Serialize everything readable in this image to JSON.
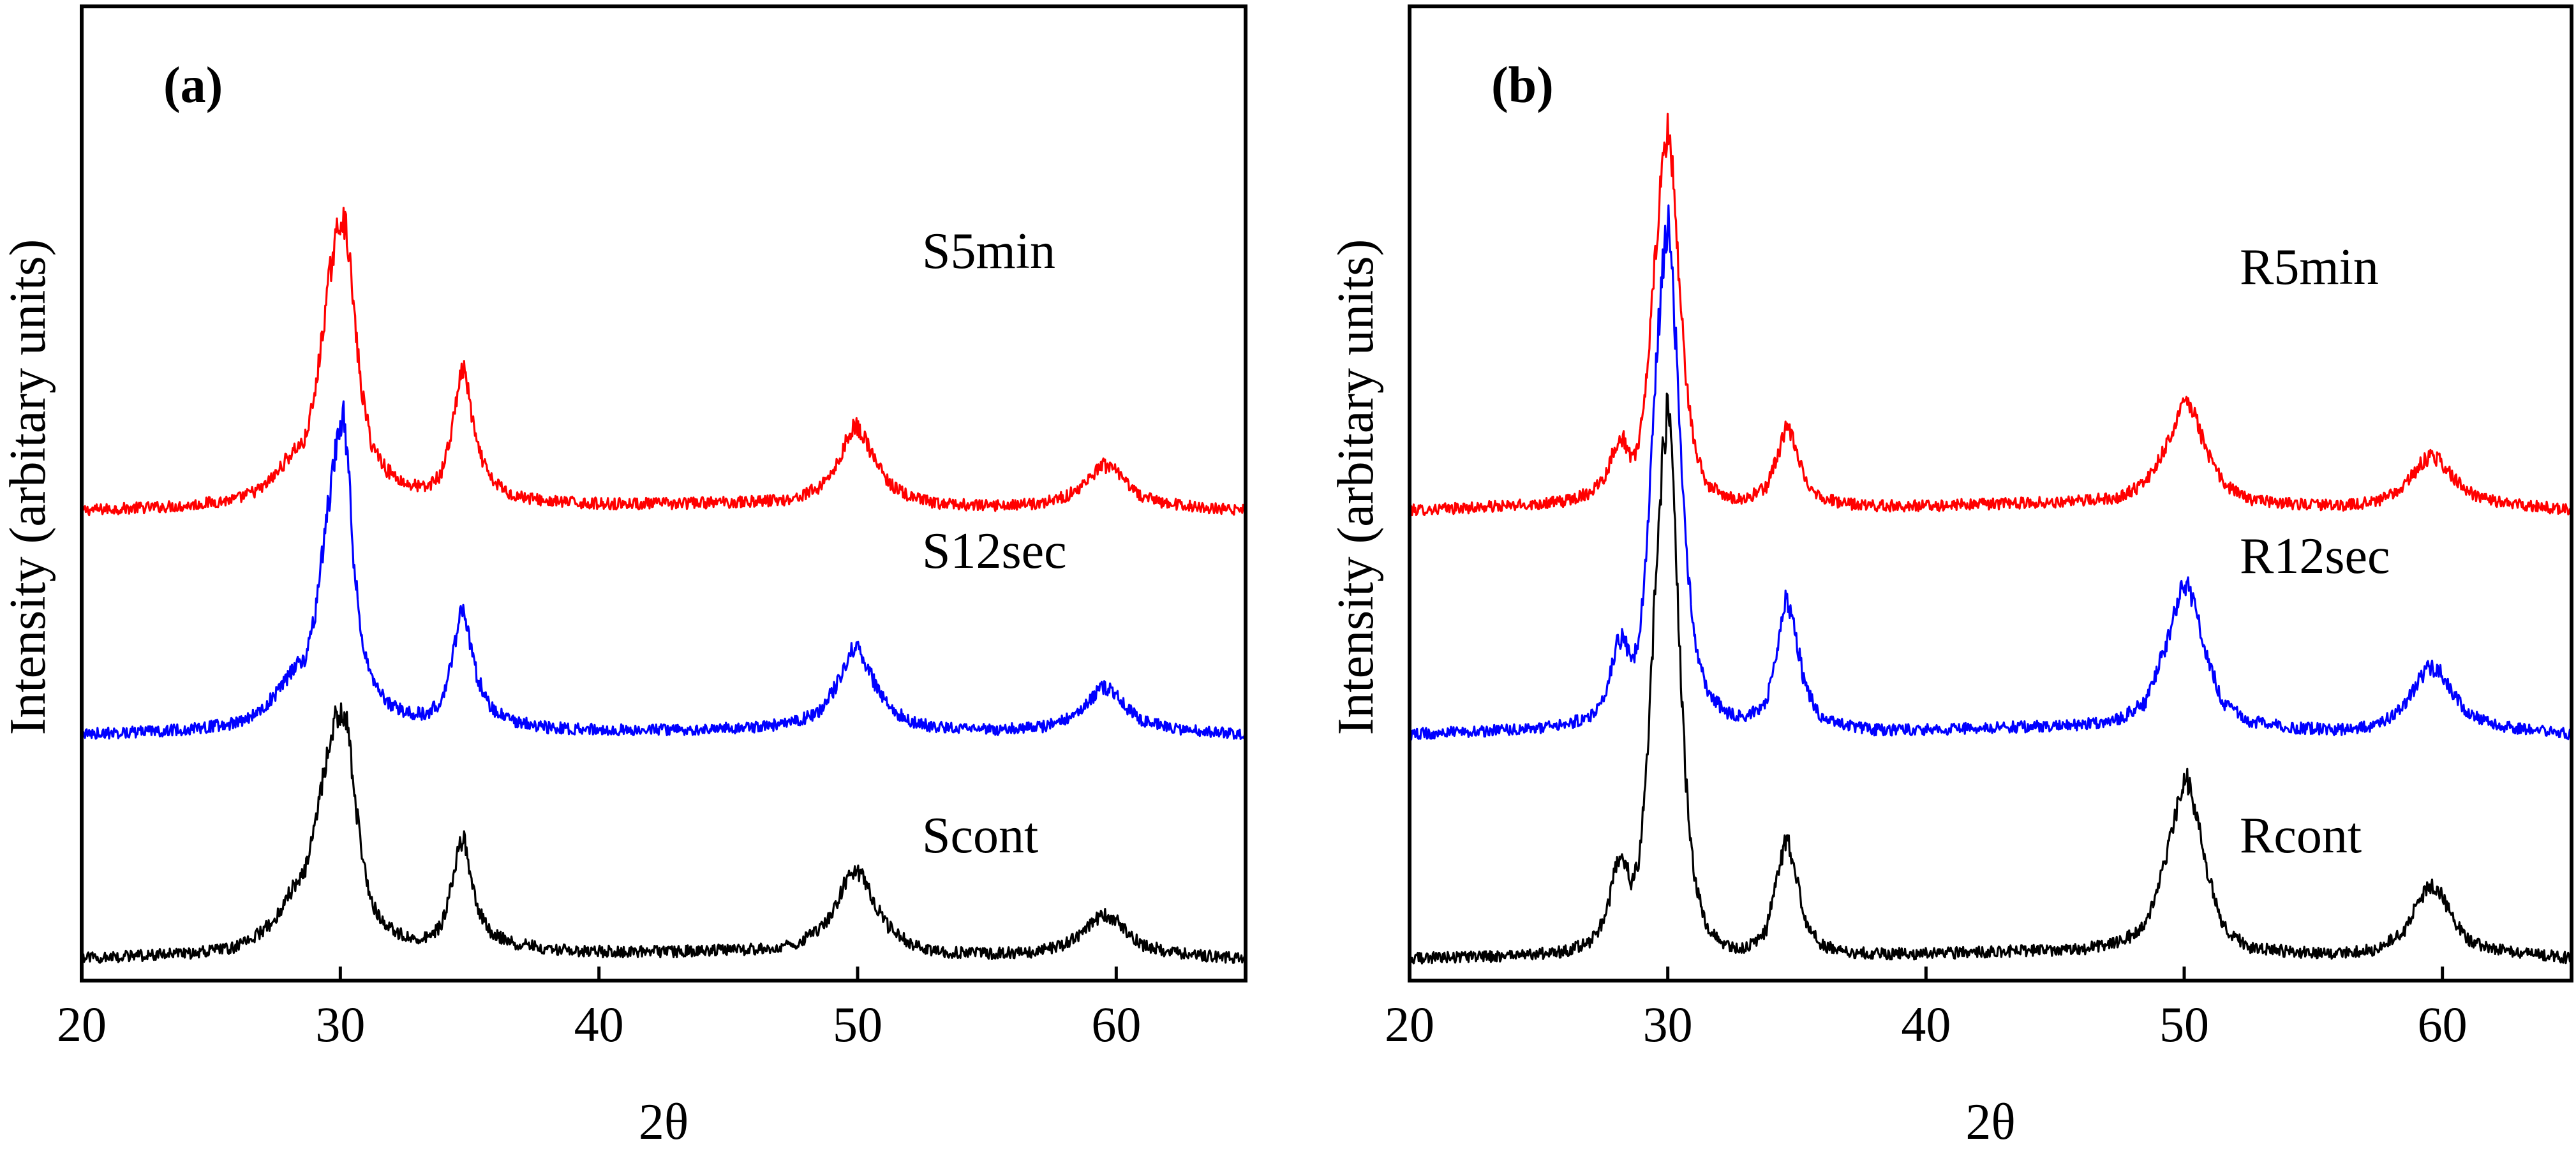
{
  "chart_data": [
    {
      "type": "line",
      "panel_label": "(a)",
      "xlabel": "2θ",
      "ylabel": "Intensity (arbitary units)",
      "xlim": [
        20,
        65
      ],
      "x_ticks": [
        "20",
        "30",
        "40",
        "50",
        "60"
      ],
      "y_ticks": [],
      "grid": false,
      "series": [
        {
          "name": "S5min",
          "color": "#ff0000",
          "x": [
            20,
            24,
            26,
            27,
            27.5,
            28,
            28.3,
            28.6,
            29,
            29.3,
            29.6,
            29.9,
            30.1,
            30.3,
            30.5,
            30.8,
            31.2,
            31.8,
            32.5,
            33.3,
            33.9,
            34.3,
            34.6,
            34.8,
            35.0,
            35.3,
            35.8,
            36.6,
            38,
            40,
            43,
            46,
            47.5,
            48.5,
            49.2,
            49.6,
            49.9,
            50.2,
            50.6,
            51.2,
            52,
            53,
            55,
            57,
            58,
            58.6,
            59.1,
            59.5,
            59.9,
            60.4,
            61,
            62,
            63.5,
            65
          ],
          "y": [
            1.0,
            1.02,
            1.05,
            1.1,
            1.16,
            1.24,
            1.28,
            1.3,
            1.5,
            1.78,
            2.06,
            2.26,
            2.32,
            2.2,
            1.92,
            1.55,
            1.3,
            1.18,
            1.12,
            1.1,
            1.16,
            1.35,
            1.58,
            1.64,
            1.48,
            1.28,
            1.14,
            1.07,
            1.04,
            1.03,
            1.03,
            1.04,
            1.05,
            1.1,
            1.2,
            1.32,
            1.38,
            1.34,
            1.24,
            1.12,
            1.06,
            1.03,
            1.02,
            1.03,
            1.06,
            1.1,
            1.16,
            1.2,
            1.18,
            1.12,
            1.06,
            1.03,
            1.01,
            1.0
          ]
        },
        {
          "name": "S12sec",
          "color": "#0000ff",
          "x": [
            20,
            24,
            26,
            27,
            27.5,
            28,
            28.3,
            28.6,
            29,
            29.3,
            29.6,
            29.9,
            30.1,
            30.3,
            30.5,
            30.8,
            31.2,
            31.8,
            32.5,
            33.3,
            33.9,
            34.3,
            34.6,
            34.8,
            35.0,
            35.3,
            35.8,
            36.6,
            38,
            40,
            43,
            46,
            47.5,
            48.5,
            49.2,
            49.6,
            49.9,
            50.2,
            50.6,
            51.2,
            52,
            53,
            55,
            57,
            58,
            58.6,
            59.1,
            59.5,
            59.9,
            60.4,
            61,
            62,
            63.5,
            65
          ],
          "y": [
            0.0,
            0.02,
            0.05,
            0.11,
            0.18,
            0.26,
            0.31,
            0.33,
            0.52,
            0.8,
            1.08,
            1.33,
            1.45,
            1.22,
            0.8,
            0.45,
            0.24,
            0.14,
            0.1,
            0.09,
            0.14,
            0.33,
            0.52,
            0.56,
            0.42,
            0.25,
            0.12,
            0.06,
            0.03,
            0.02,
            0.02,
            0.03,
            0.05,
            0.1,
            0.22,
            0.34,
            0.4,
            0.35,
            0.24,
            0.12,
            0.06,
            0.03,
            0.02,
            0.03,
            0.06,
            0.11,
            0.17,
            0.21,
            0.19,
            0.12,
            0.06,
            0.03,
            0.01,
            0.0
          ]
        },
        {
          "name": "Scont",
          "color": "#000000",
          "x": [
            20,
            24,
            26,
            27,
            27.5,
            28,
            28.3,
            28.6,
            29,
            29.3,
            29.6,
            29.9,
            30.1,
            30.3,
            30.5,
            30.8,
            31.2,
            31.8,
            32.5,
            33.3,
            33.9,
            34.3,
            34.6,
            34.8,
            35.0,
            35.3,
            35.8,
            36.6,
            38,
            40,
            43,
            46,
            47.5,
            48.5,
            49.2,
            49.6,
            49.9,
            50.2,
            50.6,
            51.2,
            52,
            53,
            55,
            57,
            58,
            58.6,
            59.1,
            59.5,
            59.9,
            60.4,
            61,
            62,
            63.5,
            65
          ],
          "y": [
            -1.0,
            -0.98,
            -0.95,
            -0.88,
            -0.82,
            -0.72,
            -0.66,
            -0.62,
            -0.42,
            -0.22,
            -0.02,
            0.1,
            0.12,
            0.02,
            -0.22,
            -0.5,
            -0.75,
            -0.86,
            -0.9,
            -0.91,
            -0.86,
            -0.68,
            -0.5,
            -0.47,
            -0.6,
            -0.78,
            -0.88,
            -0.93,
            -0.96,
            -0.97,
            -0.97,
            -0.96,
            -0.94,
            -0.88,
            -0.76,
            -0.64,
            -0.6,
            -0.64,
            -0.74,
            -0.86,
            -0.93,
            -0.97,
            -0.98,
            -0.97,
            -0.94,
            -0.9,
            -0.84,
            -0.8,
            -0.82,
            -0.88,
            -0.94,
            -0.97,
            -0.99,
            -1.0
          ]
        }
      ],
      "annotations": [
        "S5min",
        "S12sec",
        "Scont"
      ]
    },
    {
      "type": "line",
      "panel_label": "(b)",
      "xlabel": "2θ",
      "ylabel": "Intensity (arbitary units)",
      "xlim": [
        20,
        65
      ],
      "x_ticks": [
        "20",
        "30",
        "40",
        "50",
        "60"
      ],
      "y_ticks": [],
      "grid": false,
      "series": [
        {
          "name": "R5min",
          "color": "#ff0000",
          "x": [
            20,
            24,
            26,
            27,
            27.6,
            28.0,
            28.3,
            28.6,
            28.9,
            29.2,
            29.5,
            29.8,
            30.0,
            30.2,
            30.4,
            30.7,
            31.0,
            31.5,
            32.2,
            33.0,
            33.8,
            34.3,
            34.6,
            34.9,
            35.3,
            35.9,
            36.8,
            38,
            40,
            43,
            46,
            47.5,
            48.5,
            49.3,
            49.8,
            50.1,
            50.4,
            50.9,
            51.5,
            52.5,
            54,
            56,
            57.5,
            58.5,
            59.1,
            59.5,
            59.9,
            60.4,
            61.0,
            62,
            63.5,
            65
          ],
          "y": [
            1.0,
            1.02,
            1.04,
            1.08,
            1.16,
            1.3,
            1.32,
            1.22,
            1.3,
            1.62,
            2.1,
            2.55,
            2.7,
            2.52,
            2.1,
            1.6,
            1.3,
            1.12,
            1.06,
            1.05,
            1.1,
            1.26,
            1.38,
            1.3,
            1.14,
            1.06,
            1.03,
            1.02,
            1.02,
            1.03,
            1.04,
            1.06,
            1.12,
            1.28,
            1.45,
            1.5,
            1.42,
            1.26,
            1.12,
            1.05,
            1.03,
            1.02,
            1.04,
            1.1,
            1.2,
            1.24,
            1.22,
            1.15,
            1.08,
            1.04,
            1.02,
            1.0
          ]
        },
        {
          "name": "R12sec",
          "color": "#0000ff",
          "x": [
            20,
            24,
            26,
            27,
            27.6,
            28.0,
            28.3,
            28.6,
            28.9,
            29.2,
            29.5,
            29.8,
            30.0,
            30.2,
            30.4,
            30.7,
            31.0,
            31.5,
            32.2,
            33.0,
            33.8,
            34.3,
            34.6,
            34.9,
            35.3,
            35.9,
            36.8,
            38,
            40,
            43,
            46,
            47.5,
            48.5,
            49.3,
            49.8,
            50.1,
            50.4,
            50.9,
            51.5,
            52.5,
            54,
            56,
            57.5,
            58.5,
            59.1,
            59.5,
            59.9,
            60.4,
            61.0,
            62,
            63.5,
            65
          ],
          "y": [
            0.0,
            0.02,
            0.04,
            0.08,
            0.18,
            0.4,
            0.44,
            0.32,
            0.42,
            0.86,
            1.55,
            2.1,
            2.3,
            2.05,
            1.5,
            0.85,
            0.45,
            0.2,
            0.1,
            0.07,
            0.14,
            0.42,
            0.62,
            0.48,
            0.22,
            0.08,
            0.04,
            0.02,
            0.02,
            0.03,
            0.04,
            0.07,
            0.14,
            0.4,
            0.62,
            0.68,
            0.58,
            0.34,
            0.14,
            0.06,
            0.03,
            0.02,
            0.04,
            0.12,
            0.24,
            0.3,
            0.28,
            0.18,
            0.09,
            0.04,
            0.02,
            0.0
          ]
        },
        {
          "name": "Rcont",
          "color": "#000000",
          "x": [
            20,
            24,
            26,
            27,
            27.6,
            28.0,
            28.3,
            28.6,
            28.9,
            29.2,
            29.5,
            29.8,
            30.0,
            30.2,
            30.4,
            30.7,
            31.0,
            31.5,
            32.2,
            33.0,
            33.8,
            34.3,
            34.6,
            34.9,
            35.3,
            35.9,
            36.8,
            38,
            40,
            43,
            46,
            47.5,
            48.5,
            49.3,
            49.8,
            50.1,
            50.4,
            50.9,
            51.5,
            52.5,
            54,
            56,
            57.5,
            58.5,
            59.1,
            59.5,
            59.9,
            60.4,
            61.0,
            62,
            63.5,
            65
          ],
          "y": [
            -1.0,
            -0.99,
            -0.97,
            -0.93,
            -0.82,
            -0.58,
            -0.56,
            -0.66,
            -0.56,
            -0.1,
            0.6,
            1.25,
            1.45,
            1.2,
            0.55,
            -0.2,
            -0.62,
            -0.86,
            -0.94,
            -0.96,
            -0.88,
            -0.6,
            -0.46,
            -0.58,
            -0.82,
            -0.94,
            -0.97,
            -0.98,
            -0.98,
            -0.97,
            -0.96,
            -0.93,
            -0.86,
            -0.55,
            -0.28,
            -0.2,
            -0.32,
            -0.62,
            -0.86,
            -0.95,
            -0.97,
            -0.98,
            -0.96,
            -0.88,
            -0.74,
            -0.68,
            -0.7,
            -0.82,
            -0.92,
            -0.96,
            -0.98,
            -1.0
          ]
        }
      ],
      "annotations": [
        "R5min",
        "R12sec",
        "Rcont"
      ]
    }
  ]
}
